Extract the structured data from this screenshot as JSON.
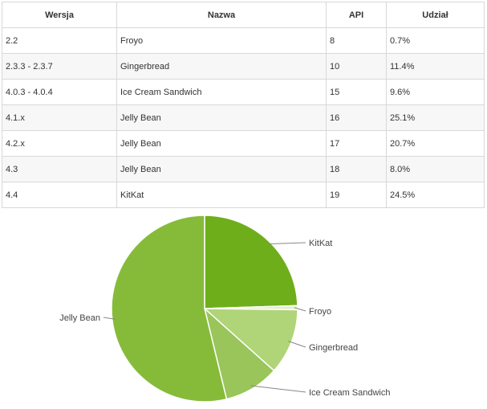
{
  "table": {
    "headers": [
      "Wersja",
      "Nazwa",
      "API",
      "Udział"
    ],
    "rows": [
      [
        "2.2",
        "Froyo",
        "8",
        "0.7%"
      ],
      [
        "2.3.3 - 2.3.7",
        "Gingerbread",
        "10",
        "11.4%"
      ],
      [
        "4.0.3 - 4.0.4",
        "Ice Cream Sandwich",
        "15",
        "9.6%"
      ],
      [
        "4.1.x",
        "Jelly Bean",
        "16",
        "25.1%"
      ],
      [
        "4.2.x",
        "Jelly Bean",
        "17",
        "20.7%"
      ],
      [
        "4.3",
        "Jelly Bean",
        "18",
        "8.0%"
      ],
      [
        "4.4",
        "KitKat",
        "19",
        "24.5%"
      ]
    ]
  },
  "chart_data": {
    "type": "pie",
    "title": "",
    "slices": [
      {
        "label": "KitKat",
        "value": 24.5,
        "color": "#6fae1b"
      },
      {
        "label": "Froyo",
        "value": 0.7,
        "color": "#e2efcd"
      },
      {
        "label": "Gingerbread",
        "value": 11.4,
        "color": "#b0d478"
      },
      {
        "label": "Ice Cream Sandwich",
        "value": 9.6,
        "color": "#99c55a"
      },
      {
        "label": "Jelly Bean",
        "value": 53.8,
        "color": "#86bb3a"
      }
    ],
    "start": "12 o'clock",
    "direction": "clockwise"
  }
}
